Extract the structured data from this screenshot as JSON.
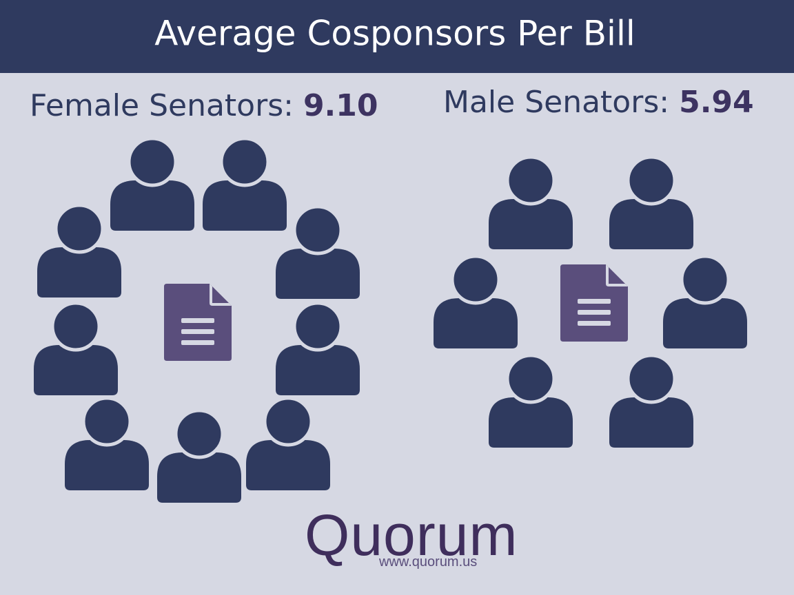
{
  "title": "Average Cosponsors Per Bill",
  "panels": [
    {
      "label": "Female Senators:",
      "value": "9.10"
    },
    {
      "label": "Male Senators:",
      "value": "5.94"
    }
  ],
  "logo": {
    "name": "Quorum",
    "url": "www.quorum.us"
  }
}
